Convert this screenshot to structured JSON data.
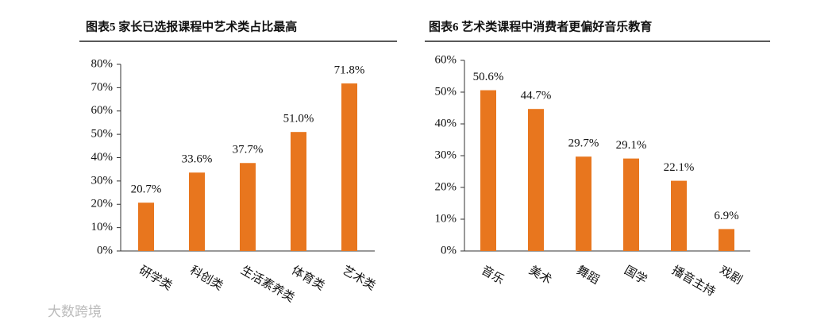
{
  "chart_data": [
    {
      "type": "bar",
      "title": "图表5 家长已选报课程中艺术类占比最高",
      "categories": [
        "研学类",
        "科创类",
        "生活素养类",
        "体育类",
        "艺术类"
      ],
      "values": [
        20.7,
        33.6,
        37.7,
        51.0,
        71.8
      ],
      "value_labels": [
        "20.7%",
        "33.6%",
        "37.7%",
        "51.0%",
        "71.8%"
      ],
      "color": "#e8761e",
      "ylim": [
        0,
        80
      ],
      "yticks": [
        {
          "value": 0,
          "label": "0%"
        },
        {
          "value": 10,
          "label": "10%"
        },
        {
          "value": 20,
          "label": "20%"
        },
        {
          "value": 30,
          "label": "30%"
        },
        {
          "value": 40,
          "label": "40%"
        },
        {
          "value": 50,
          "label": "50%"
        },
        {
          "value": 60,
          "label": "60%"
        },
        {
          "value": 70,
          "label": "70%"
        },
        {
          "value": 80,
          "label": "80%"
        }
      ]
    },
    {
      "type": "bar",
      "title": "图表6 艺术类课程中消费者更偏好音乐教育",
      "categories": [
        "音乐",
        "美术",
        "舞蹈",
        "国学",
        "播音主持",
        "戏剧"
      ],
      "values": [
        50.6,
        44.7,
        29.7,
        29.1,
        22.1,
        6.9
      ],
      "value_labels": [
        "50.6%",
        "44.7%",
        "29.7%",
        "29.1%",
        "22.1%",
        "6.9%"
      ],
      "color": "#e8761e",
      "ylim": [
        0,
        60
      ],
      "yticks": [
        {
          "value": 0,
          "label": "0%"
        },
        {
          "value": 10,
          "label": "10%"
        },
        {
          "value": 20,
          "label": "20%"
        },
        {
          "value": 30,
          "label": "30%"
        },
        {
          "value": 40,
          "label": "40%"
        },
        {
          "value": 50,
          "label": "50%"
        },
        {
          "value": 60,
          "label": "60%"
        }
      ]
    }
  ],
  "watermark": "大数跨境"
}
